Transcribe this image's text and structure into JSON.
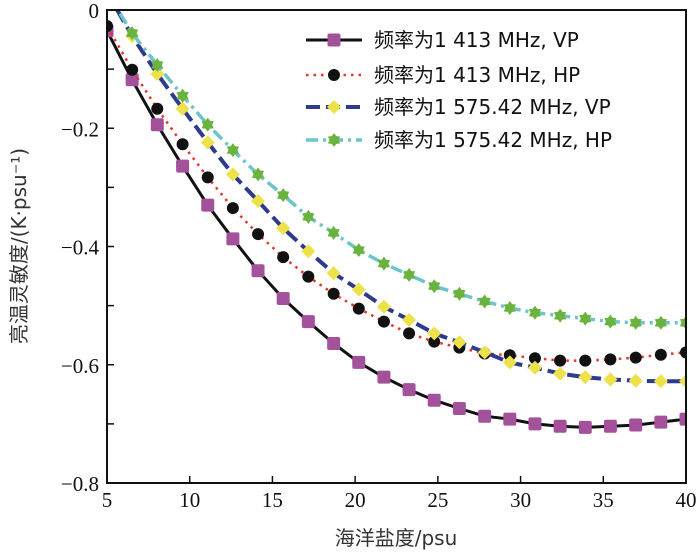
{
  "chart_data": {
    "type": "line",
    "title": "",
    "xlabel": "海洋盐度/psu",
    "ylabel": "亮温灵敏度/(K·psu⁻¹)",
    "xlim": [
      5,
      40
    ],
    "ylim": [
      -0.8,
      0
    ],
    "xticks": [
      5,
      10,
      15,
      20,
      25,
      30,
      35,
      40
    ],
    "yticks": [
      0,
      -0.2,
      -0.4,
      -0.6,
      -0.8
    ],
    "xtick_labels": [
      "5",
      "10",
      "15",
      "20",
      "25",
      "30",
      "35",
      "40"
    ],
    "ytick_labels": [
      "0",
      "−0.2",
      "−0.4",
      "−0.6",
      "−0.8"
    ],
    "y_minor_ticks": [
      -0.1,
      -0.3,
      -0.5,
      -0.7
    ],
    "grid": false,
    "legend_position": "top-right",
    "x": [
      5.0,
      6.52,
      8.04,
      9.57,
      11.09,
      12.61,
      14.13,
      15.65,
      17.17,
      18.7,
      20.22,
      21.74,
      23.26,
      24.78,
      26.3,
      27.83,
      29.35,
      30.87,
      32.39,
      33.91,
      35.43,
      36.96,
      38.48,
      40.0
    ],
    "series": [
      {
        "name": "频率为1 413 MHz, VP",
        "line_color": "#111111",
        "marker_color": "#A3519B",
        "line_style": "solid",
        "marker": "square",
        "values": [
          -0.035,
          -0.118,
          -0.194,
          -0.264,
          -0.33,
          -0.387,
          -0.441,
          -0.488,
          -0.527,
          -0.564,
          -0.596,
          -0.621,
          -0.642,
          -0.66,
          -0.674,
          -0.687,
          -0.692,
          -0.7,
          -0.704,
          -0.706,
          -0.704,
          -0.702,
          -0.697,
          -0.692
        ]
      },
      {
        "name": "频率为1 413 MHz, HP",
        "line_color": "#E8332A",
        "marker_color": "#111111",
        "line_style": "dotted",
        "marker": "circle",
        "values": [
          -0.027,
          -0.101,
          -0.167,
          -0.227,
          -0.283,
          -0.335,
          -0.379,
          -0.418,
          -0.451,
          -0.48,
          -0.505,
          -0.527,
          -0.547,
          -0.561,
          -0.571,
          -0.581,
          -0.584,
          -0.589,
          -0.593,
          -0.593,
          -0.591,
          -0.588,
          -0.583,
          -0.579
        ]
      },
      {
        "name": "频率为1 575.42 MHz, VP",
        "line_color": "#2E3A8C",
        "marker_color": "#EDE24A",
        "line_style": "dashed",
        "marker": "diamond",
        "values": [
          0.03,
          -0.044,
          -0.108,
          -0.167,
          -0.224,
          -0.278,
          -0.323,
          -0.369,
          -0.408,
          -0.445,
          -0.473,
          -0.502,
          -0.524,
          -0.547,
          -0.562,
          -0.579,
          -0.596,
          -0.605,
          -0.615,
          -0.621,
          -0.625,
          -0.627,
          -0.628,
          -0.628
        ]
      },
      {
        "name": "频率为1 575.42 MHz, HP",
        "line_color": "#6CC5C8",
        "marker_color": "#6AB33E",
        "line_style": "dashdot",
        "marker": "star",
        "values": [
          0.03,
          -0.039,
          -0.093,
          -0.145,
          -0.194,
          -0.237,
          -0.278,
          -0.313,
          -0.35,
          -0.377,
          -0.406,
          -0.429,
          -0.448,
          -0.467,
          -0.48,
          -0.493,
          -0.504,
          -0.512,
          -0.517,
          -0.522,
          -0.527,
          -0.529,
          -0.529,
          -0.529
        ]
      }
    ]
  }
}
